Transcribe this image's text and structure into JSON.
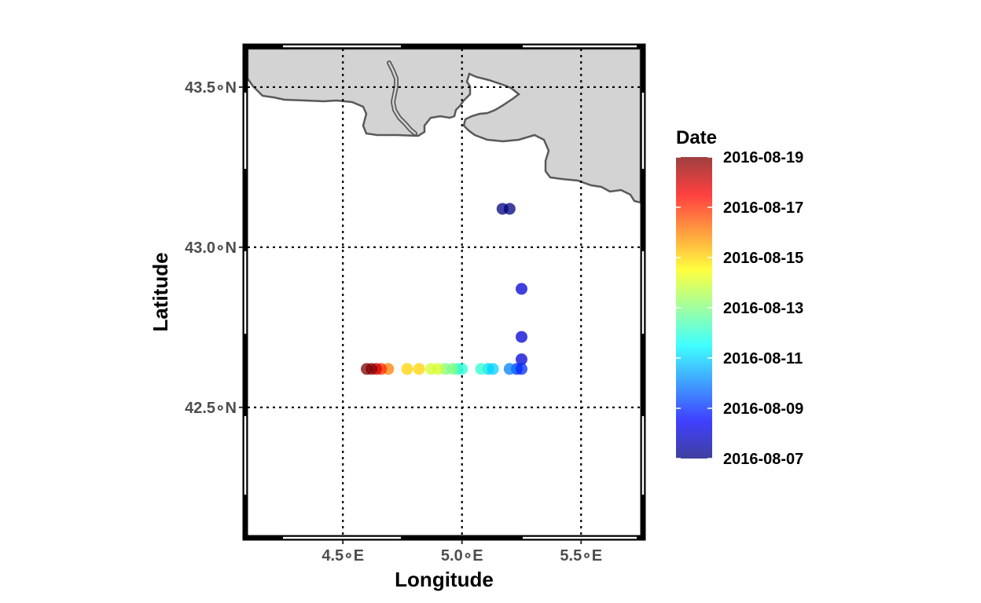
{
  "chart_data": {
    "type": "scatter",
    "title": "",
    "xlabel": "Longitude",
    "ylabel": "Latitude",
    "xlim": [
      4.1,
      5.75
    ],
    "ylim": [
      42.1,
      43.62
    ],
    "x_ticks": [
      {
        "value": 4.5,
        "label": "4.5∘E"
      },
      {
        "value": 5.0,
        "label": "5.0∘E"
      },
      {
        "value": 5.5,
        "label": "5.5∘E"
      }
    ],
    "y_ticks": [
      {
        "value": 42.5,
        "label": "42.5∘N"
      },
      {
        "value": 43.0,
        "label": "43.0∘N"
      },
      {
        "value": 43.5,
        "label": "43.5∘N"
      }
    ],
    "grid": true,
    "grid_style": "dotted",
    "land_color": "#d3d3d3",
    "coast_color": "#595959",
    "legend": {
      "title": "Date",
      "position": "right",
      "labels": [
        "2016-08-19",
        "2016-08-17",
        "2016-08-15",
        "2016-08-13",
        "2016-08-11",
        "2016-08-09",
        "2016-08-07"
      ],
      "colormap": [
        "#00007f",
        "#0000ff",
        "#007fff",
        "#00ffff",
        "#7fff7f",
        "#ffff00",
        "#ff7f00",
        "#ff0000",
        "#7f0000"
      ]
    },
    "points": [
      {
        "lon": 5.17,
        "lat": 43.12,
        "date": "2016-08-07"
      },
      {
        "lon": 5.2,
        "lat": 43.12,
        "date": "2016-08-07"
      },
      {
        "lon": 5.25,
        "lat": 42.87,
        "date": "2016-08-08"
      },
      {
        "lon": 5.25,
        "lat": 42.72,
        "date": "2016-08-08"
      },
      {
        "lon": 5.25,
        "lat": 42.65,
        "date": "2016-08-08"
      },
      {
        "lon": 5.25,
        "lat": 42.62,
        "date": "2016-08-09"
      },
      {
        "lon": 5.23,
        "lat": 42.62,
        "date": "2016-08-09"
      },
      {
        "lon": 5.2,
        "lat": 42.62,
        "date": "2016-08-10"
      },
      {
        "lon": 5.13,
        "lat": 42.62,
        "date": "2016-08-11"
      },
      {
        "lon": 5.11,
        "lat": 42.62,
        "date": "2016-08-11"
      },
      {
        "lon": 5.08,
        "lat": 42.62,
        "date": "2016-08-12"
      },
      {
        "lon": 5.0,
        "lat": 42.62,
        "date": "2016-08-12"
      },
      {
        "lon": 4.98,
        "lat": 42.62,
        "date": "2016-08-12"
      },
      {
        "lon": 4.96,
        "lat": 42.62,
        "date": "2016-08-13"
      },
      {
        "lon": 4.93,
        "lat": 42.62,
        "date": "2016-08-13"
      },
      {
        "lon": 4.9,
        "lat": 42.62,
        "date": "2016-08-14"
      },
      {
        "lon": 4.87,
        "lat": 42.62,
        "date": "2016-08-14"
      },
      {
        "lon": 4.82,
        "lat": 42.62,
        "date": "2016-08-15"
      },
      {
        "lon": 4.77,
        "lat": 42.62,
        "date": "2016-08-15"
      },
      {
        "lon": 4.69,
        "lat": 42.62,
        "date": "2016-08-16"
      },
      {
        "lon": 4.66,
        "lat": 42.62,
        "date": "2016-08-17"
      },
      {
        "lon": 4.64,
        "lat": 42.62,
        "date": "2016-08-18"
      },
      {
        "lon": 4.62,
        "lat": 42.62,
        "date": "2016-08-19"
      },
      {
        "lon": 4.6,
        "lat": 42.62,
        "date": "2016-08-19"
      }
    ]
  }
}
